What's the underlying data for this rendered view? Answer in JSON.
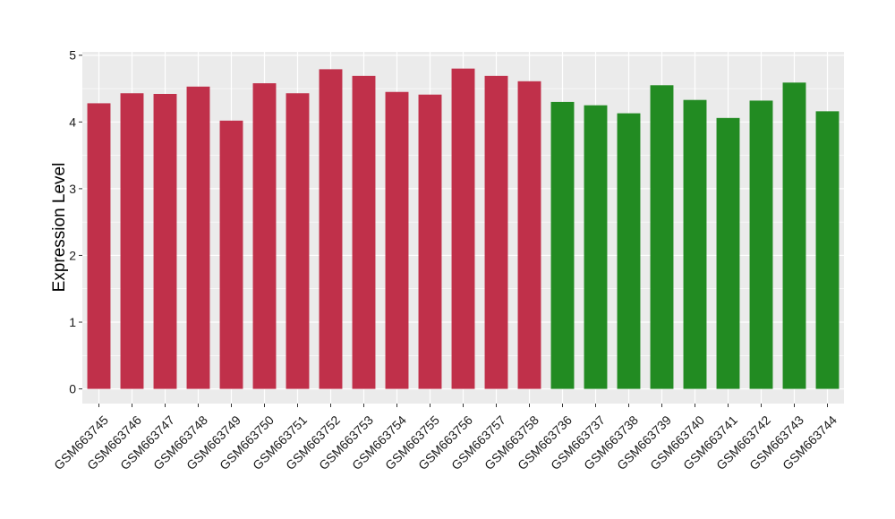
{
  "chart_data": {
    "type": "bar",
    "title": "",
    "xlabel": "",
    "ylabel": "Expression Level",
    "ylim": [
      -0.22,
      5.05
    ],
    "yticks": [
      0,
      1,
      2,
      3,
      4,
      5
    ],
    "grid": true,
    "legend": "none",
    "categories": [
      "GSM663745",
      "GSM663746",
      "GSM663747",
      "GSM663748",
      "GSM663749",
      "GSM663750",
      "GSM663751",
      "GSM663752",
      "GSM663753",
      "GSM663754",
      "GSM663755",
      "GSM663756",
      "GSM663757",
      "GSM663758",
      "GSM663736",
      "GSM663737",
      "GSM663738",
      "GSM663739",
      "GSM663740",
      "GSM663741",
      "GSM663742",
      "GSM663743",
      "GSM663744"
    ],
    "values": [
      4.28,
      4.43,
      4.42,
      4.53,
      4.02,
      4.58,
      4.43,
      4.79,
      4.69,
      4.45,
      4.41,
      4.8,
      4.69,
      4.61,
      4.3,
      4.25,
      4.13,
      4.55,
      4.33,
      4.06,
      4.32,
      4.59,
      4.16
    ],
    "bar_colors": [
      "#c0304a",
      "#c0304a",
      "#c0304a",
      "#c0304a",
      "#c0304a",
      "#c0304a",
      "#c0304a",
      "#c0304a",
      "#c0304a",
      "#c0304a",
      "#c0304a",
      "#c0304a",
      "#c0304a",
      "#c0304a",
      "#228b22",
      "#228b22",
      "#228b22",
      "#228b22",
      "#228b22",
      "#228b22",
      "#228b22",
      "#228b22",
      "#228b22"
    ],
    "panel_background": "#ebebeb",
    "grid_color": "#ffffff"
  }
}
